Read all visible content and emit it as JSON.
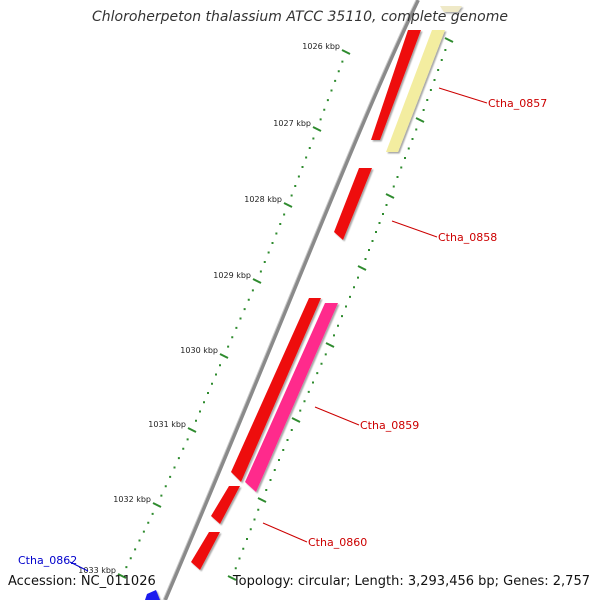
{
  "title": "Chloroherpeton thalassium ATCC 35110, complete genome",
  "accession": "Accession: NC_011026",
  "summary": "Topology: circular; Length: 3,293,456 bp; Genes: 2,757",
  "colors": {
    "backbone": "#8a8a8a",
    "tick": "#2e8b2e",
    "cds_forward": "#ee1111",
    "cds_reverse_magenta": "#ff2a8c",
    "cds_reverse_pale": "#f3eda0",
    "label_red": "#cc0000",
    "label_blue": "#0000cc"
  },
  "ticks": [
    "1026 kbp",
    "1027 kbp",
    "1028 kbp",
    "1029 kbp",
    "1030 kbp",
    "1031 kbp",
    "1032 kbp",
    "1033 kbp"
  ],
  "gene_labels": [
    {
      "name": "Ctha_0857",
      "color": "red"
    },
    {
      "name": "Ctha_0858",
      "color": "red"
    },
    {
      "name": "Ctha_0859",
      "color": "red"
    },
    {
      "name": "Ctha_0860",
      "color": "red"
    },
    {
      "name": "Ctha_0862",
      "color": "blue"
    }
  ]
}
